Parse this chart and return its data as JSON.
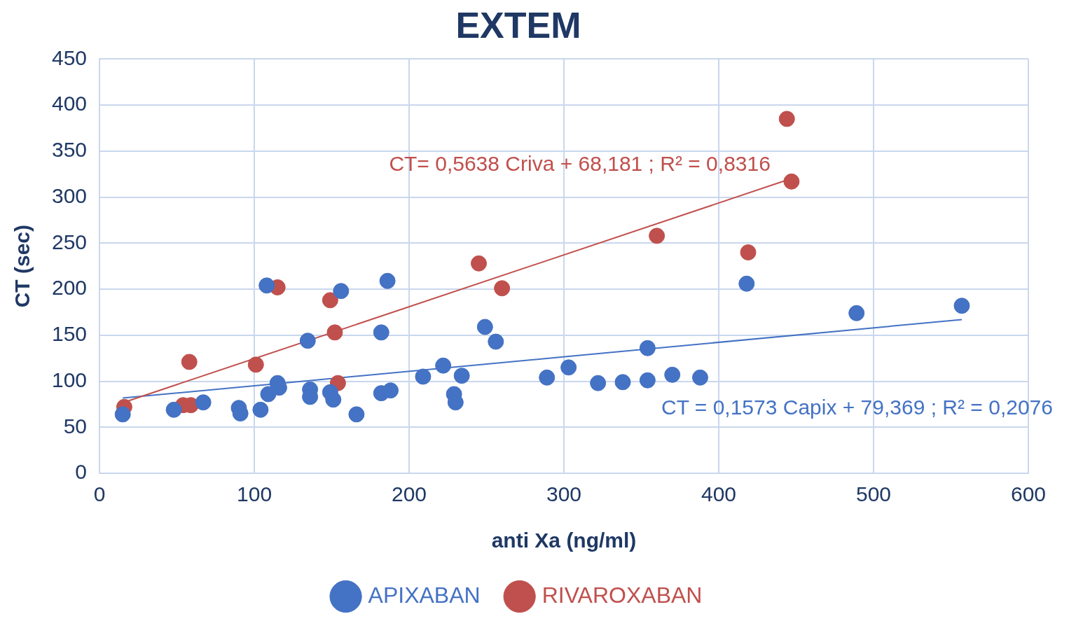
{
  "chart_data": {
    "type": "scatter",
    "title": "EXTEM",
    "xlabel": "anti Xa (ng/ml)",
    "ylabel": "CT (sec)",
    "xlim": [
      0,
      600
    ],
    "xticks": [
      0,
      100,
      200,
      300,
      400,
      500,
      600
    ],
    "ylim": [
      0,
      450
    ],
    "yticks": [
      0,
      50,
      100,
      150,
      200,
      250,
      300,
      350,
      400,
      450
    ],
    "grid": true,
    "legend": "bottom",
    "marker": "circle",
    "series": [
      {
        "name": "APIXABAN",
        "color": "#4472c4",
        "x": [
          15,
          48,
          67,
          90,
          91,
          104,
          108,
          109,
          115,
          116,
          134.5,
          136,
          136,
          149,
          151,
          156,
          166,
          182,
          182,
          186,
          188,
          209,
          222,
          229,
          230,
          234,
          249,
          256,
          289,
          303,
          322,
          338,
          354,
          354,
          370,
          388,
          418,
          489,
          557
        ],
        "values": [
          64,
          69,
          77,
          71,
          65,
          69,
          204,
          86,
          98,
          93,
          144,
          91,
          83,
          88,
          80,
          198,
          64,
          153,
          87,
          209,
          90,
          105,
          117,
          86,
          77,
          106,
          159,
          143,
          104,
          115,
          98,
          99,
          136,
          101,
          107,
          104,
          206,
          174,
          182
        ]
      },
      {
        "name": "RIVAROXABAN",
        "color": "#c0504d",
        "x": [
          16,
          54,
          59,
          58,
          101,
          115,
          149,
          152,
          154,
          245,
          260,
          360,
          419,
          444,
          447
        ],
        "values": [
          72,
          74,
          74,
          121,
          118,
          202,
          188,
          153,
          98,
          228,
          201,
          258,
          240,
          385,
          317
        ]
      },
      {
        "type": "line",
        "marker": "none",
        "color": "#c0504d",
        "x": [
          16,
          447
        ],
        "values": [
          77.2,
          320.2
        ]
      },
      {
        "type": "line",
        "marker": "none",
        "color": "#4472c4",
        "x": [
          15,
          557
        ],
        "values": [
          81.7,
          167.0
        ]
      }
    ],
    "annotations": [
      "CT= 0,5638 Criva + 68,181 ; R² = 0,8316",
      "CT = 0,1573 Capix + 79,369 ; R² = 0,2076"
    ]
  }
}
